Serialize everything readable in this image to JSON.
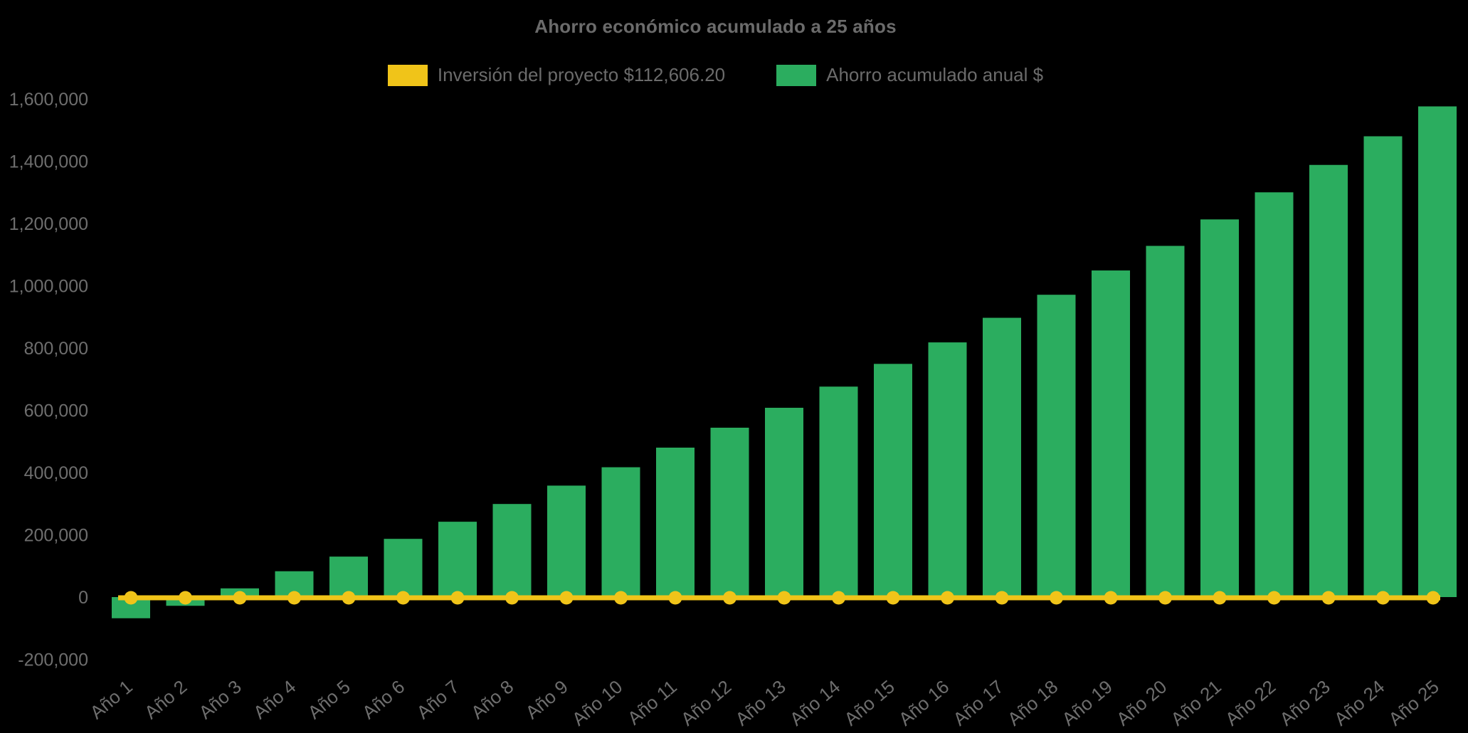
{
  "chart": {
    "title": "Ahorro económico acumulado a 25 años",
    "background_color": "#000000",
    "text_color": "#6B6B6B",
    "legend": [
      {
        "label": "Inversión del proyecto $112,606.20",
        "color": "#F0C419",
        "marker": "line"
      },
      {
        "label": "Ahorro acumulado anual $",
        "color": "#2BAD5F",
        "marker": "bar"
      }
    ]
  },
  "chart_data": {
    "type": "bar",
    "title": "Ahorro económico acumulado a 25 años",
    "categories": [
      "Año 1",
      "Año 2",
      "Año 3",
      "Año 4",
      "Año 5",
      "Año 6",
      "Año 7",
      "Año 8",
      "Año 9",
      "Año 10",
      "Año 11",
      "Año 12",
      "Año 13",
      "Año 14",
      "Año 15",
      "Año 16",
      "Año 17",
      "Año 18",
      "Año 19",
      "Año 20",
      "Año 21",
      "Año 22",
      "Año 23",
      "Año 24",
      "Año 25"
    ],
    "series": [
      {
        "name": "Inversión del proyecto $112,606.20",
        "type": "line",
        "color": "#F0C419",
        "point_style": "circle",
        "values": [
          0,
          0,
          0,
          0,
          0,
          0,
          0,
          0,
          0,
          0,
          0,
          0,
          0,
          0,
          0,
          0,
          0,
          0,
          0,
          0,
          0,
          0,
          0,
          0,
          0
        ]
      },
      {
        "name": "Ahorro acumulado anual $",
        "type": "bar",
        "color": "#2BAD5F",
        "values": [
          -68000,
          -28000,
          28000,
          83000,
          130000,
          187000,
          242000,
          299000,
          358000,
          417000,
          480000,
          544000,
          608000,
          676000,
          749000,
          818000,
          897000,
          971000,
          1049000,
          1128000,
          1213000,
          1300000,
          1388000,
          1480000,
          1576000
        ]
      }
    ],
    "investment_amount": "$112,606.20",
    "xlabel": "",
    "ylabel": "",
    "ylim": [
      -200000,
      1600000
    ],
    "ytick_step": 200000,
    "ytick_labels": [
      "-200,000",
      "0",
      "200,000",
      "400,000",
      "600,000",
      "800,000",
      "1,000,000",
      "1,200,000",
      "1,400,000",
      "1,600,000"
    ],
    "x_label_rotation": -40,
    "grid": false,
    "legend_position": "top"
  }
}
